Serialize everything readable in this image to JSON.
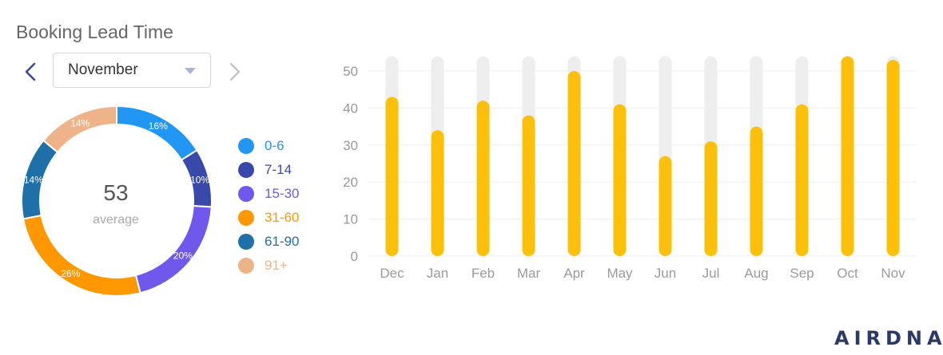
{
  "header": {
    "title": "Booking Lead Time"
  },
  "month_selector": {
    "selected": "November"
  },
  "donut": {
    "center_value": "53",
    "center_label": "average"
  },
  "legend": [
    {
      "label": "0-6",
      "color": "#2196f3"
    },
    {
      "label": "7-14",
      "color": "#3949ab"
    },
    {
      "label": "15-30",
      "color": "#7158ec"
    },
    {
      "label": "31-60",
      "color": "#ff9800"
    },
    {
      "label": "61-90",
      "color": "#1f6fa8"
    },
    {
      "label": "91+",
      "color": "#efb38a"
    }
  ],
  "logo": {
    "text": "AIRDNA"
  },
  "chart_data": [
    {
      "type": "pie",
      "categories": [
        "0-6",
        "7-14",
        "15-30",
        "31-60",
        "61-90",
        "91+"
      ],
      "values": [
        16,
        10,
        20,
        26,
        14,
        14
      ],
      "labels": [
        "16%",
        "10%",
        "20%",
        "26%",
        "14%",
        "14%"
      ],
      "colors": [
        "#2196f3",
        "#3949ab",
        "#7158ec",
        "#ff9800",
        "#1f6fa8",
        "#efb38a"
      ],
      "legend": "right"
    },
    {
      "type": "bar",
      "categories": [
        "Dec",
        "Jan",
        "Feb",
        "Mar",
        "Apr",
        "May",
        "Jun",
        "Jul",
        "Aug",
        "Sep",
        "Oct",
        "Nov"
      ],
      "values": [
        43,
        34,
        42,
        38,
        50,
        41,
        27,
        31,
        35,
        41,
        54,
        53
      ],
      "background_max": 54,
      "yticks": [
        "0",
        "10",
        "20",
        "30",
        "40",
        "50"
      ],
      "ylim": [
        0,
        54
      ],
      "color": "#fcc00a",
      "track_color": "#eeeeee",
      "grid": true
    }
  ]
}
